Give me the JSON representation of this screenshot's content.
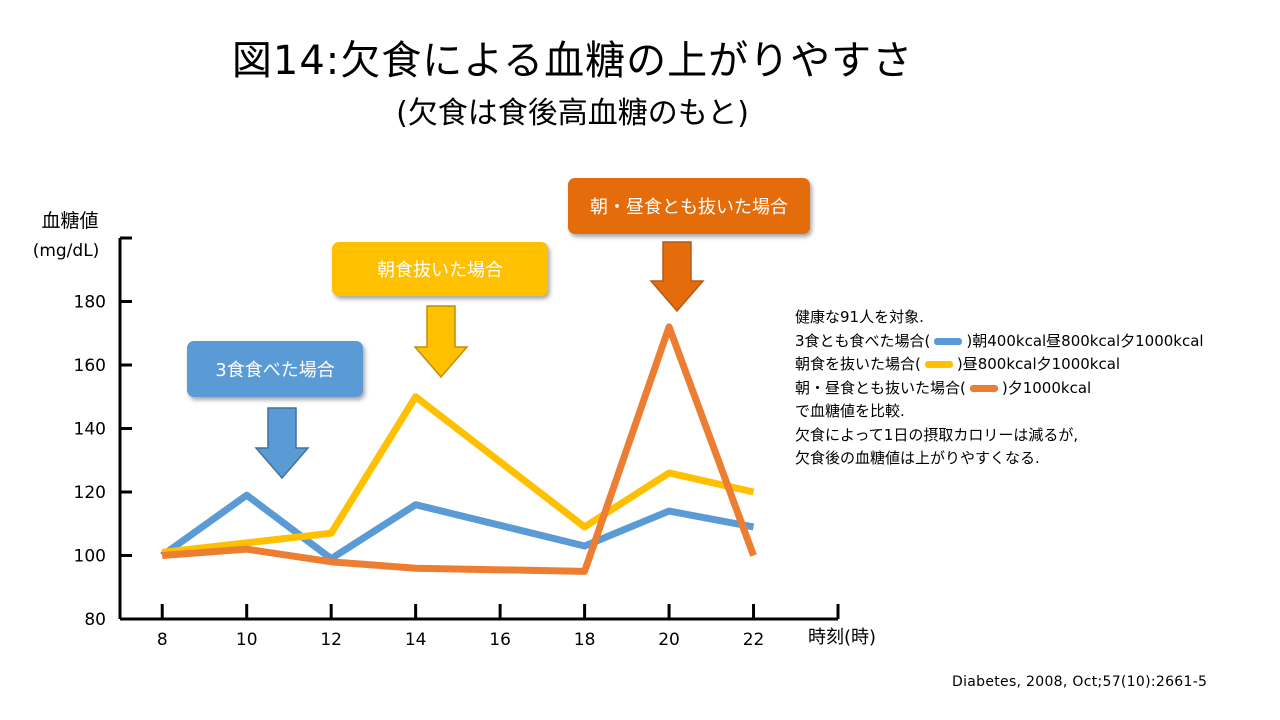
{
  "slide": {
    "title": "図14:欠食による血糖の上がりやすさ",
    "subtitle": "(欠食は食後高血糖のもと)",
    "citation": "Diabetes, 2008, Oct;57(10):2661-5"
  },
  "callouts": {
    "three_meals": "3食食べた場合",
    "skip_breakfast": "朝食抜いた場合",
    "skip_breakfast_lunch": "朝・昼食とも抜いた場合"
  },
  "notes": {
    "line1": "健康な91人を対象.",
    "line2_pre": "3食とも食べた場合(",
    "line2_post": ")朝400kcal昼800kcal夕1000kcal",
    "line3_pre": "朝食を抜いた場合(",
    "line3_post": ")昼800kcal夕1000kcal",
    "line4_pre": "朝・昼食とも抜いた場合(",
    "line4_post": ")夕1000kcal",
    "line5": "で血糖値を比較.",
    "line6": "欠食によって1日の摂取カロリーは減るが,",
    "line7": "欠食後の血糖値は上がりやすくなる."
  },
  "colors": {
    "blue": "#5b9bd5",
    "yellow": "#ffc000",
    "orange": "#ed7d31",
    "orange_box": "#e46c0a"
  },
  "chart_data": {
    "type": "line",
    "xlabel": "時刻(時)",
    "ylabel": "血糖値",
    "ylabel_unit": "(mg/dL)",
    "x": [
      8,
      10,
      12,
      14,
      16,
      18,
      20,
      22
    ],
    "x_ticks": [
      "8",
      "10",
      "12",
      "14",
      "16",
      "18",
      "20",
      "22"
    ],
    "y_ticks": [
      "80",
      "100",
      "120",
      "140",
      "160",
      "180"
    ],
    "ylim": [
      80,
      200
    ],
    "xlim": [
      7,
      24
    ],
    "grid": false,
    "series": [
      {
        "color": "#5b9bd5",
        "x": [
          8,
          10,
          12,
          14,
          18,
          20,
          22
        ],
        "values": [
          100,
          119,
          99,
          116,
          103,
          114,
          109
        ]
      },
      {
        "color": "#ffc000",
        "x": [
          8,
          10,
          12,
          14,
          18,
          20,
          22
        ],
        "values": [
          101,
          104,
          107,
          150,
          109,
          126,
          120
        ]
      },
      {
        "color": "#ed7d31",
        "x": [
          8,
          10,
          12,
          14,
          18,
          20,
          22
        ],
        "values": [
          100,
          102,
          98,
          96,
          95,
          172,
          100
        ]
      }
    ]
  }
}
